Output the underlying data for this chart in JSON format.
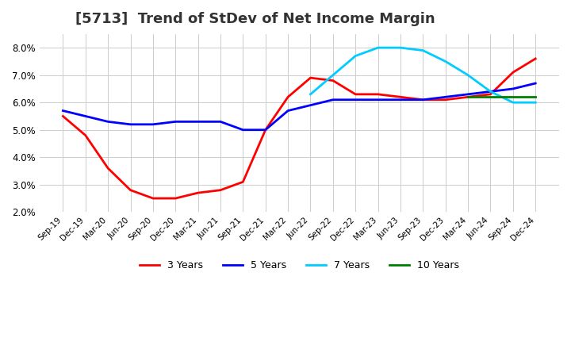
{
  "title": "[5713]  Trend of StDev of Net Income Margin",
  "title_fontsize": 13,
  "background_color": "#ffffff",
  "grid_color": "#cccccc",
  "ylim": [
    0.02,
    0.085
  ],
  "yticks": [
    0.02,
    0.03,
    0.04,
    0.05,
    0.06,
    0.07,
    0.08
  ],
  "legend_entries": [
    "3 Years",
    "5 Years",
    "7 Years",
    "10 Years"
  ],
  "legend_colors": [
    "#ff0000",
    "#0000ff",
    "#00ccff",
    "#008000"
  ],
  "x_labels": [
    "Sep-19",
    "Dec-19",
    "Mar-20",
    "Jun-20",
    "Sep-20",
    "Dec-20",
    "Mar-21",
    "Jun-21",
    "Sep-21",
    "Dec-21",
    "Mar-22",
    "Jun-22",
    "Sep-22",
    "Dec-22",
    "Mar-23",
    "Jun-23",
    "Sep-23",
    "Dec-23",
    "Mar-24",
    "Jun-24",
    "Sep-24",
    "Dec-24"
  ],
  "series_3y": [
    0.055,
    0.048,
    0.036,
    0.028,
    0.025,
    0.025,
    0.027,
    0.028,
    0.031,
    0.05,
    0.062,
    0.069,
    0.068,
    0.063,
    0.063,
    0.062,
    0.061,
    0.061,
    0.062,
    0.063,
    0.071,
    0.076
  ],
  "series_5y": [
    0.057,
    0.055,
    0.053,
    0.052,
    0.052,
    0.053,
    0.053,
    0.053,
    0.05,
    0.05,
    0.057,
    0.059,
    0.061,
    0.061,
    0.061,
    0.061,
    0.061,
    0.062,
    0.063,
    0.064,
    0.065,
    0.067
  ],
  "series_7y": [
    null,
    null,
    null,
    null,
    null,
    null,
    null,
    null,
    null,
    null,
    null,
    0.063,
    0.07,
    0.077,
    0.08,
    0.08,
    0.079,
    0.075,
    0.07,
    0.064,
    0.06,
    0.06
  ],
  "series_10y": [
    null,
    null,
    null,
    null,
    null,
    null,
    null,
    null,
    null,
    null,
    null,
    null,
    null,
    null,
    null,
    null,
    null,
    null,
    0.062,
    0.062,
    0.062,
    0.062
  ]
}
